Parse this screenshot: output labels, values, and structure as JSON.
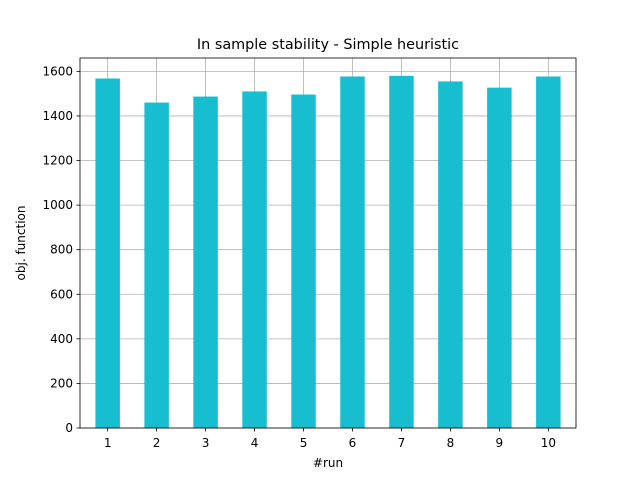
{
  "chart_data": {
    "type": "bar",
    "title": "In sample stability - Simple heuristic",
    "xlabel": "#run",
    "ylabel": "obj. function",
    "categories": [
      "1",
      "2",
      "3",
      "4",
      "5",
      "6",
      "7",
      "8",
      "9",
      "10"
    ],
    "values": [
      1568,
      1460,
      1487,
      1510,
      1496,
      1577,
      1580,
      1555,
      1527,
      1577
    ],
    "ylim": [
      0,
      1660
    ],
    "yticks": [
      0,
      200,
      400,
      600,
      800,
      1000,
      1200,
      1400,
      1600
    ],
    "grid": true,
    "legend": "none",
    "bar_color": "#17becf",
    "grid_color": "#b0b0b0"
  }
}
